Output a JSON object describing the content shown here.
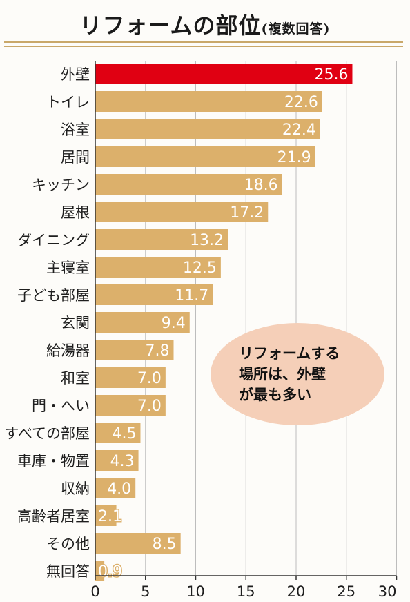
{
  "header": {
    "title": "リフォームの部位",
    "subtitle": "(複数回答)"
  },
  "callout": {
    "text": "リフォームする\n場所は、外壁\nが最も多い"
  },
  "colors": {
    "bar": "#dcb06b",
    "highlight": "#e00012",
    "callout": "#f5cfb8",
    "rule": "#c9a86a"
  },
  "chart_data": {
    "type": "bar",
    "orientation": "horizontal",
    "title": "リフォームの部位",
    "subtitle": "(複数回答)",
    "categories": [
      "外壁",
      "トイレ",
      "浴室",
      "居間",
      "キッチン",
      "屋根",
      "ダイニング",
      "主寝室",
      "子ども部屋",
      "玄関",
      "給湯器",
      "和室",
      "門・へい",
      "すべての部屋",
      "車庫・物置",
      "収納",
      "高齢者居室",
      "その他",
      "無回答"
    ],
    "values": [
      25.6,
      22.6,
      22.4,
      21.9,
      18.6,
      17.2,
      13.2,
      12.5,
      11.7,
      9.4,
      7.8,
      7.0,
      7.0,
      4.5,
      4.3,
      4.0,
      2.1,
      8.5,
      0.9
    ],
    "value_labels": [
      "25.6",
      "22.6",
      "22.4",
      "21.9",
      "18.6",
      "17.2",
      "13.2",
      "12.5",
      "11.7",
      "9.4",
      "7.8",
      "7.0",
      "7.0",
      "4.5",
      "4.3",
      "4.0",
      "2.1",
      "8.5",
      "0.9"
    ],
    "highlight_index": 0,
    "xlim": [
      0,
      30
    ],
    "xticks": [
      0,
      5,
      10,
      15,
      20,
      25,
      30
    ],
    "xtick_labels": [
      "0",
      "5",
      "10",
      "15",
      "20",
      "25",
      "30"
    ],
    "grid": "vertical",
    "xlabel": "",
    "ylabel": ""
  }
}
